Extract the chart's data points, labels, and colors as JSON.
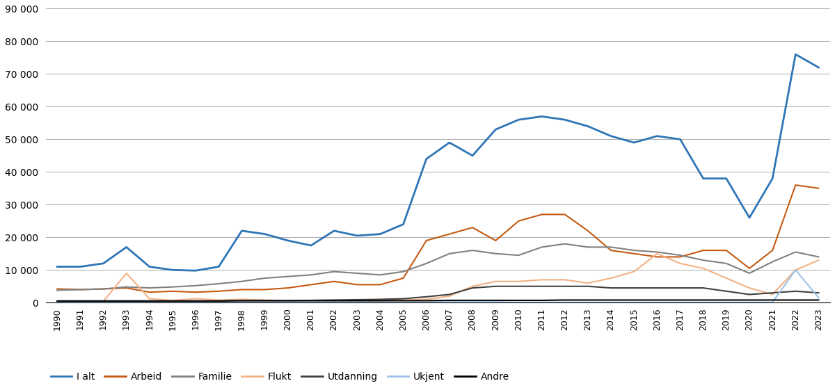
{
  "years": [
    1990,
    1991,
    1992,
    1993,
    1994,
    1995,
    1996,
    1997,
    1998,
    1999,
    2000,
    2001,
    2002,
    2003,
    2004,
    2005,
    2006,
    2007,
    2008,
    2009,
    2010,
    2011,
    2012,
    2013,
    2014,
    2015,
    2016,
    2017,
    2018,
    2019,
    2020,
    2021,
    2022,
    2023
  ],
  "series": {
    "I alt": [
      11000,
      11000,
      12000,
      17000,
      11000,
      10000,
      9800,
      11000,
      22000,
      21000,
      19000,
      17500,
      22000,
      20500,
      21000,
      24000,
      44000,
      49000,
      45000,
      53000,
      56000,
      57000,
      56000,
      54000,
      51000,
      49000,
      51000,
      50000,
      38000,
      38000,
      26000,
      38000,
      76000,
      72000
    ],
    "Arbeid": [
      4200,
      4000,
      4200,
      4500,
      3200,
      3500,
      3200,
      3500,
      4000,
      4000,
      4500,
      5500,
      6500,
      5500,
      5500,
      7500,
      19000,
      21000,
      23000,
      19000,
      25000,
      27000,
      27000,
      22000,
      16000,
      15000,
      14000,
      14000,
      16000,
      16000,
      10500,
      16000,
      36000,
      35000
    ],
    "Familie": [
      3800,
      4000,
      4200,
      4800,
      4500,
      4800,
      5200,
      5800,
      6500,
      7500,
      8000,
      8500,
      9500,
      9000,
      8500,
      9500,
      12000,
      15000,
      16000,
      15000,
      14500,
      17000,
      18000,
      17000,
      17000,
      16000,
      15500,
      14500,
      13000,
      12000,
      9000,
      12500,
      15500,
      14000
    ],
    "Flukt": [
      400,
      400,
      400,
      9000,
      1200,
      700,
      1200,
      800,
      1000,
      800,
      600,
      600,
      600,
      600,
      600,
      800,
      1000,
      2000,
      5000,
      6500,
      6500,
      7000,
      7000,
      6000,
      7500,
      9500,
      15000,
      12000,
      10500,
      7500,
      4500,
      2500,
      10000,
      13000
    ],
    "Utdanning": [
      500,
      500,
      500,
      500,
      500,
      500,
      500,
      500,
      600,
      600,
      600,
      700,
      800,
      900,
      1000,
      1200,
      1800,
      2500,
      4500,
      5000,
      5000,
      5000,
      5000,
      5000,
      4500,
      4500,
      4500,
      4500,
      4500,
      3500,
      2500,
      3000,
      3500,
      3000
    ],
    "Ukjent": [
      100,
      100,
      100,
      100,
      100,
      100,
      100,
      100,
      100,
      100,
      100,
      100,
      100,
      100,
      100,
      100,
      100,
      200,
      200,
      200,
      100,
      100,
      100,
      100,
      100,
      100,
      100,
      100,
      100,
      100,
      100,
      100,
      10000,
      1500
    ],
    "Andre": [
      500,
      500,
      500,
      500,
      500,
      500,
      500,
      500,
      600,
      600,
      600,
      600,
      600,
      600,
      600,
      600,
      600,
      700,
      700,
      700,
      700,
      700,
      800,
      800,
      800,
      800,
      800,
      800,
      800,
      800,
      800,
      800,
      800,
      800
    ]
  },
  "colors": {
    "I alt": "#2e75b6",
    "Arbeid": "#c55a11",
    "Familie": "#808080",
    "Flukt": "#f4b183",
    "Utdanning": "#404040",
    "Ukjent": "#9dc3e6",
    "Andre": "#000000"
  },
  "ylim": [
    0,
    90000
  ],
  "yticks": [
    0,
    10000,
    20000,
    30000,
    40000,
    50000,
    60000,
    70000,
    80000,
    90000
  ],
  "background_color": "#ffffff",
  "grid_color": "#aaaaaa",
  "legend_labels": [
    "I alt",
    "Arbeid",
    "Familie",
    "Flukt",
    "Utdanning",
    "Ukjent",
    "Andre"
  ]
}
